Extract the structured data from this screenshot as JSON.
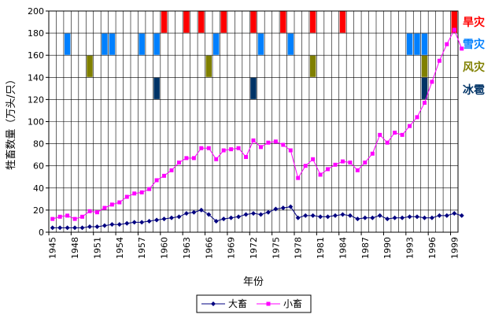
{
  "chart_data": {
    "type": "line",
    "xlabel": "年份",
    "ylabel": "牲畜数量（万头/只）",
    "ylim": [
      0,
      200
    ],
    "ytick_step": 20,
    "x_start": 1945,
    "x_end": 2000,
    "x_tick_labels": [
      "1945",
      "1948",
      "1951",
      "1954",
      "1957",
      "1960",
      "1963",
      "1966",
      "1969",
      "1972",
      "1975",
      "1978",
      "1981",
      "1984",
      "1987",
      "1990",
      "1993",
      "1996",
      "1999"
    ],
    "grid": true,
    "legend_position": "bottom",
    "series": [
      {
        "name": "大畜",
        "color": "#000080",
        "marker": "diamond",
        "values": [
          4,
          4,
          4,
          4,
          4,
          5,
          5,
          6,
          7,
          7,
          8,
          9,
          9,
          10,
          11,
          12,
          13,
          14,
          17,
          18,
          20,
          16,
          10,
          12,
          13,
          14,
          16,
          17,
          16,
          18,
          21,
          22,
          23,
          13,
          15,
          15,
          14,
          14,
          15,
          16,
          15,
          12,
          13,
          13,
          15,
          12,
          13,
          13,
          14,
          14,
          13,
          13,
          15,
          15,
          17,
          15
        ]
      },
      {
        "name": "小畜",
        "color": "#ff00ff",
        "marker": "square",
        "values": [
          12,
          14,
          15,
          12,
          14,
          19,
          18,
          22,
          25,
          27,
          32,
          35,
          36,
          39,
          47,
          51,
          56,
          63,
          67,
          67,
          76,
          76,
          66,
          74,
          75,
          76,
          68,
          83,
          77,
          81,
          82,
          79,
          74,
          49,
          60,
          66,
          52,
          57,
          61,
          64,
          63,
          56,
          63,
          71,
          88,
          81,
          90,
          88,
          96,
          104,
          117,
          136,
          155,
          170,
          183,
          166
        ]
      }
    ],
    "disaster_rows": [
      {
        "name": "旱灾",
        "color": "#ff0000",
        "label_color": "#ff0000",
        "ymin": 180,
        "ymax": 200,
        "years": [
          1960,
          1963,
          1965,
          1968,
          1972,
          1976,
          1980,
          1984,
          1999
        ]
      },
      {
        "name": "雪灾",
        "color": "#0080ff",
        "label_color": "#0080ff",
        "ymin": 160,
        "ymax": 180,
        "years": [
          1947,
          1952,
          1953,
          1957,
          1959,
          1967,
          1973,
          1977,
          1993,
          1994,
          1995
        ]
      },
      {
        "name": "风灾",
        "color": "#808000",
        "label_color": "#808000",
        "ymin": 140,
        "ymax": 160,
        "years": [
          1950,
          1966,
          1980,
          1995
        ]
      },
      {
        "name": "冰雹",
        "color": "#003366",
        "label_color": "#003366",
        "ymin": 120,
        "ymax": 140,
        "years": [
          1959,
          1972,
          1995
        ]
      }
    ]
  }
}
